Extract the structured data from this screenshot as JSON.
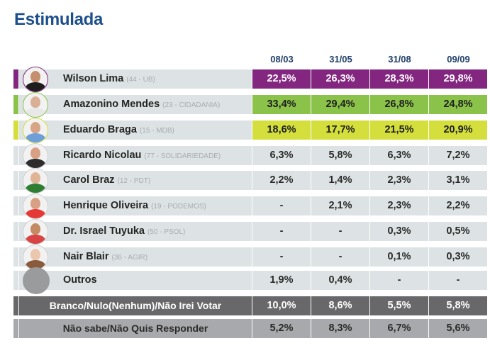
{
  "title": "Estimulada",
  "chart_data": {
    "type": "table",
    "title": "Estimulada",
    "columns": [
      "08/03",
      "31/05",
      "31/08",
      "09/09"
    ],
    "rows": [
      {
        "name": "Wilson Lima",
        "party": "(44 - UB)",
        "values": [
          "22,5%",
          "26,3%",
          "28,3%",
          "29,8%"
        ],
        "color": "#82267f",
        "text_color": "#ffffff",
        "avatar": "photo-wilson-lima",
        "skin": "#c58f6e",
        "shirt": "#1e1e1e"
      },
      {
        "name": "Amazonino Mendes",
        "party": "(23 - CIDADANIA)",
        "values": [
          "33,4%",
          "29,4%",
          "26,8%",
          "24,8%"
        ],
        "color": "#8bc34a",
        "text_color": "#1e1e1e",
        "avatar": "photo-amazonino-mendes",
        "skin": "#d9b094",
        "shirt": "#e8e8e8"
      },
      {
        "name": "Eduardo Braga",
        "party": "(15 - MDB)",
        "values": [
          "18,6%",
          "17,7%",
          "21,5%",
          "20,9%"
        ],
        "color": "#d4df3e",
        "text_color": "#1e1e1e",
        "avatar": "photo-eduardo-braga",
        "skin": "#d7a585",
        "shirt": "#6f9fd8"
      },
      {
        "name": "Ricardo Nicolau",
        "party": "(77 - SOLIDARIEDADE)",
        "values": [
          "6,3%",
          "5,8%",
          "6,3%",
          "7,2%"
        ],
        "color": "#dde3e4",
        "text_color": "#2a2a2a",
        "avatar": "photo-ricardo-nicolau",
        "skin": "#d9a184",
        "shirt": "#2d2d2d"
      },
      {
        "name": "Carol Braz",
        "party": "(12 - PDT)",
        "values": [
          "2,2%",
          "1,4%",
          "2,3%",
          "3,1%"
        ],
        "color": "#dde3e4",
        "text_color": "#2a2a2a",
        "avatar": "photo-carol-braz",
        "skin": "#e0b596",
        "shirt": "#2e7d32"
      },
      {
        "name": "Henrique Oliveira",
        "party": "(19 - PODEMOS)",
        "values": [
          "-",
          "2,1%",
          "2,3%",
          "2,2%"
        ],
        "color": "#dde3e4",
        "text_color": "#2a2a2a",
        "avatar": "photo-henrique-oliveira",
        "skin": "#d9a184",
        "shirt": "#e53935"
      },
      {
        "name": "Dr. Israel Tuyuka",
        "party": "(50 - PSOL)",
        "values": [
          "-",
          "-",
          "0,3%",
          "0,5%"
        ],
        "color": "#dde3e4",
        "text_color": "#2a2a2a",
        "avatar": "photo-israel-tuyuka",
        "skin": "#c48a62",
        "shirt": "#d84343"
      },
      {
        "name": "Nair Blair",
        "party": "(36 - AGIR)",
        "values": [
          "-",
          "-",
          "0,1%",
          "0,3%"
        ],
        "color": "#dde3e4",
        "text_color": "#2a2a2a",
        "avatar": "photo-nair-blair",
        "skin": "#ecc7ad",
        "shirt": "#8a5a3c"
      },
      {
        "name": "Outros",
        "party": "",
        "values": [
          "1,9%",
          "0,4%",
          "-",
          "-"
        ],
        "color": "#dde3e4",
        "text_color": "#2a2a2a",
        "avatar": "placeholder-circle",
        "skin": "",
        "shirt": ""
      }
    ],
    "summary_rows": [
      {
        "label": "Branco/Nulo(Nenhum)/Não Irei Votar",
        "values": [
          "10,0%",
          "8,6%",
          "5,5%",
          "5,8%"
        ],
        "color": "#68686a",
        "text_color": "#ffffff"
      },
      {
        "label": "Não sabe/Não Quis Responder",
        "values": [
          "5,2%",
          "8,3%",
          "6,7%",
          "5,6%"
        ],
        "color": "#a8a9ac",
        "text_color": "#2a2a2a"
      }
    ]
  }
}
